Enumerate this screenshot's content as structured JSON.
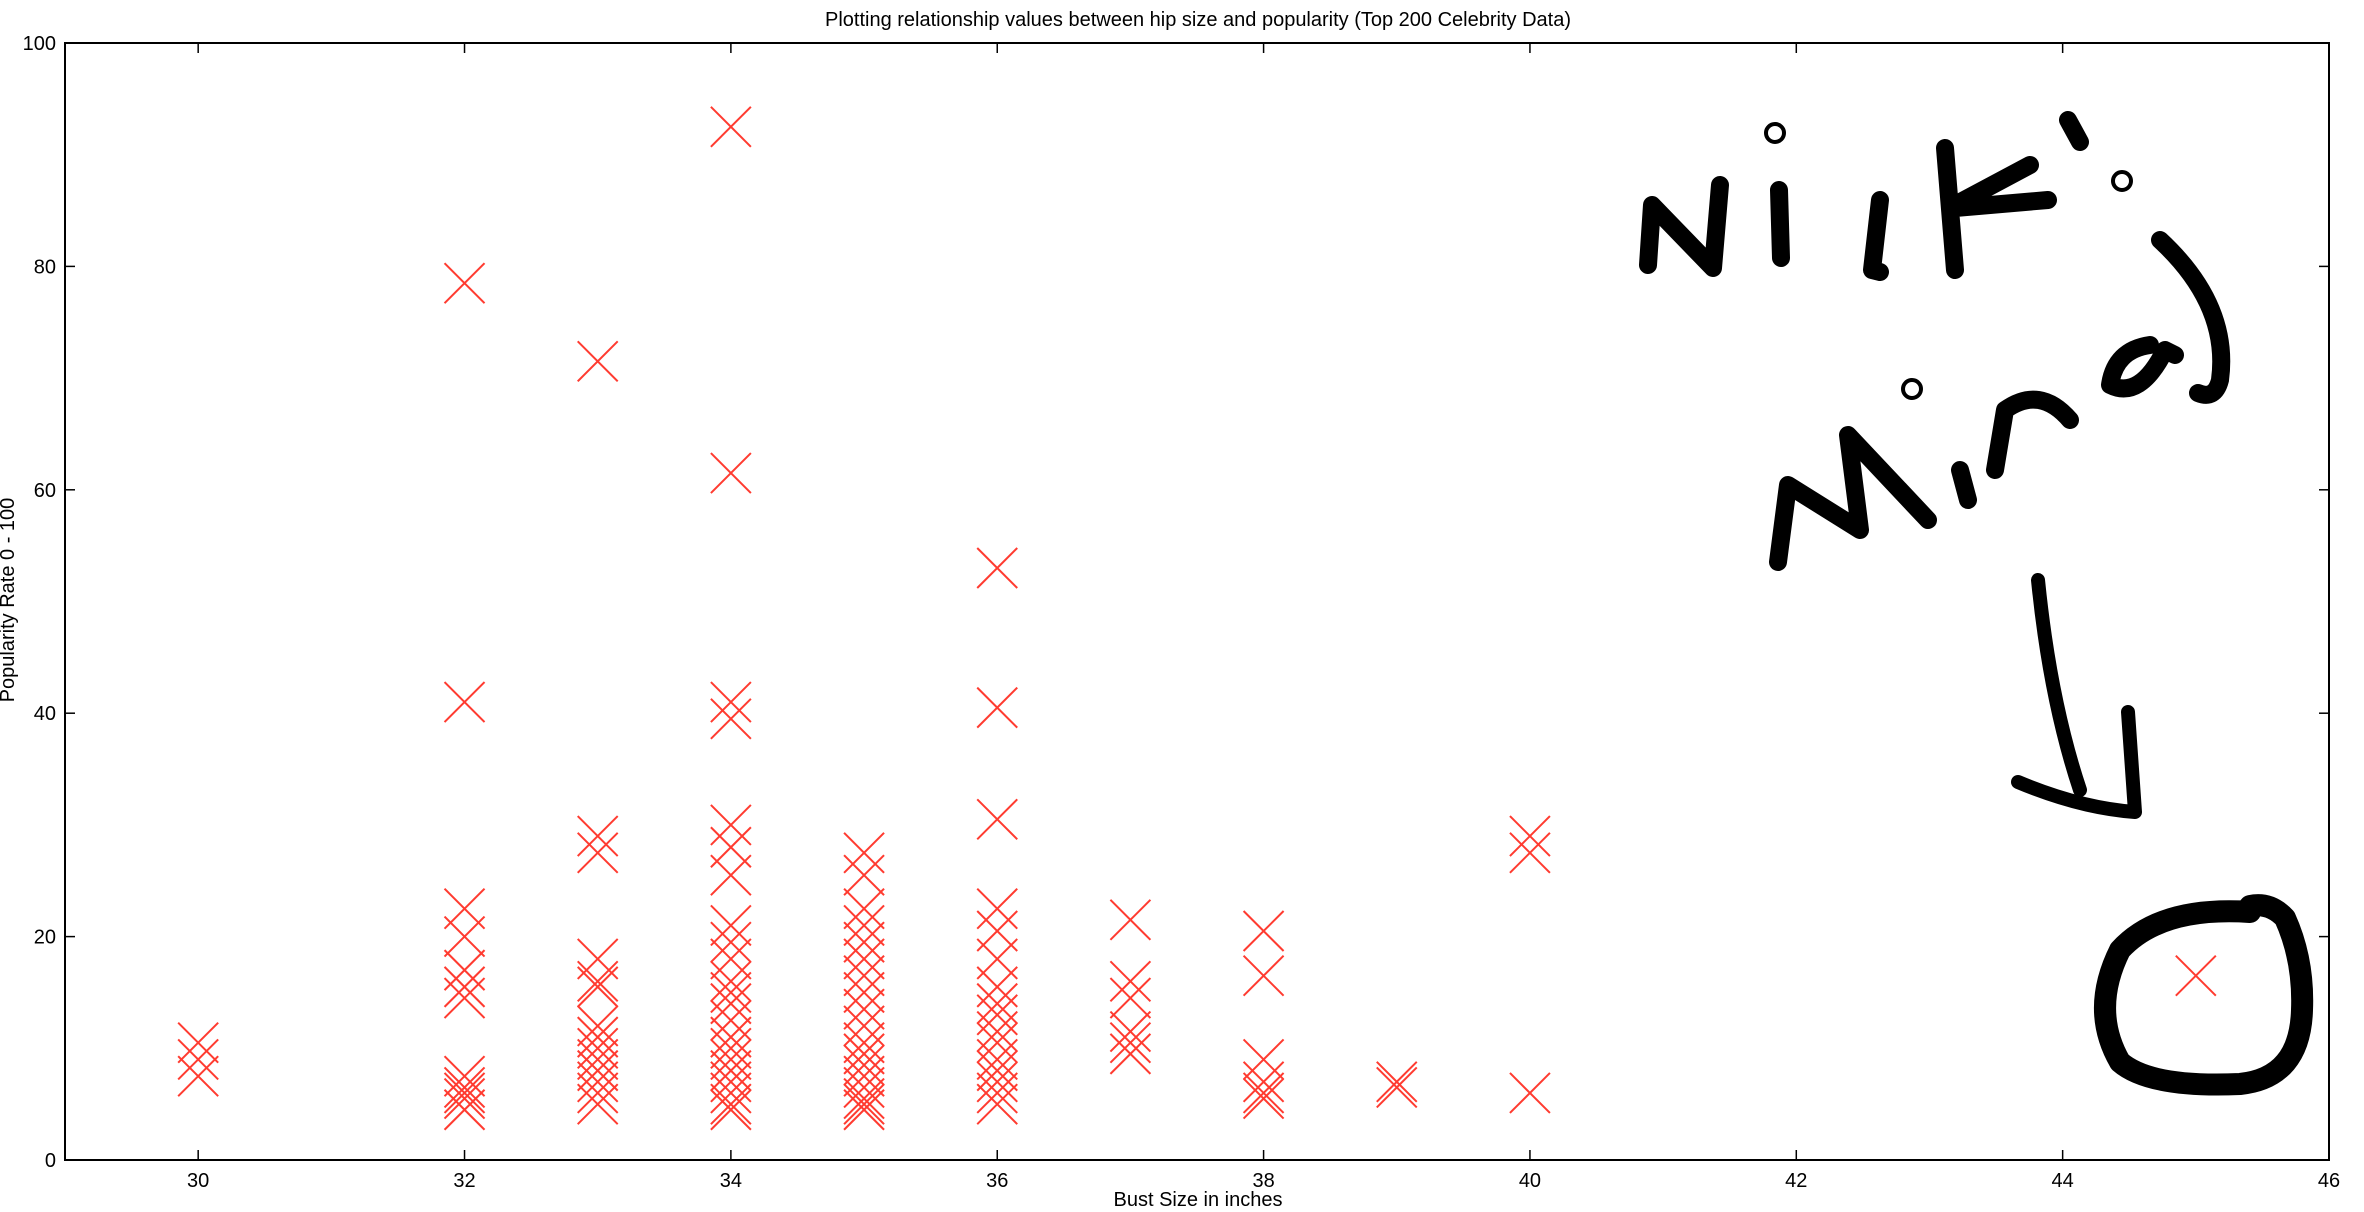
{
  "chart_data": {
    "type": "scatter",
    "title": "Plotting relationship values between hip size and popularity (Top 200 Celebrity Data)",
    "xlabel": "Bust Size in inches",
    "ylabel": "Popularity Rate 0 - 100",
    "xlim": [
      29,
      46
    ],
    "ylim": [
      0,
      100
    ],
    "xticks": [
      30,
      32,
      34,
      36,
      38,
      40,
      42,
      44,
      46
    ],
    "yticks": [
      0,
      20,
      40,
      60,
      80,
      100
    ],
    "grid": false,
    "marker": "x",
    "marker_color": "#ff3b30",
    "points": [
      [
        30,
        10.5
      ],
      [
        30,
        9
      ],
      [
        30,
        7.5
      ],
      [
        32,
        78.5
      ],
      [
        32,
        41
      ],
      [
        32,
        22.5
      ],
      [
        32,
        20
      ],
      [
        32,
        17
      ],
      [
        32,
        15.5
      ],
      [
        32,
        14.5
      ],
      [
        32,
        7.5
      ],
      [
        32,
        6.5
      ],
      [
        32,
        6
      ],
      [
        32,
        5.5
      ],
      [
        32,
        4.5
      ],
      [
        33,
        71.5
      ],
      [
        33,
        29
      ],
      [
        33,
        27.5
      ],
      [
        33,
        18
      ],
      [
        33,
        16
      ],
      [
        33,
        15.5
      ],
      [
        33,
        12
      ],
      [
        33,
        11
      ],
      [
        33,
        10
      ],
      [
        33,
        9
      ],
      [
        33,
        8
      ],
      [
        33,
        7
      ],
      [
        33,
        6
      ],
      [
        33,
        5
      ],
      [
        34,
        92.5
      ],
      [
        34,
        61.5
      ],
      [
        34,
        41
      ],
      [
        34,
        39.5
      ],
      [
        34,
        30
      ],
      [
        34,
        28
      ],
      [
        34,
        25.5
      ],
      [
        34,
        21
      ],
      [
        34,
        19.5
      ],
      [
        34,
        18
      ],
      [
        34,
        16
      ],
      [
        34,
        15
      ],
      [
        34,
        14
      ],
      [
        34,
        12.5
      ],
      [
        34,
        11
      ],
      [
        34,
        10
      ],
      [
        34,
        9
      ],
      [
        34,
        8
      ],
      [
        34,
        7
      ],
      [
        34,
        6
      ],
      [
        34,
        5
      ],
      [
        34,
        4.5
      ],
      [
        35,
        27.5
      ],
      [
        35,
        25.5
      ],
      [
        35,
        22.5
      ],
      [
        35,
        21
      ],
      [
        35,
        19.5
      ],
      [
        35,
        18
      ],
      [
        35,
        16.5
      ],
      [
        35,
        15
      ],
      [
        35,
        13.5
      ],
      [
        35,
        12
      ],
      [
        35,
        10.5
      ],
      [
        35,
        9.5
      ],
      [
        35,
        8.5
      ],
      [
        35,
        7.5
      ],
      [
        35,
        6.5
      ],
      [
        35,
        5.5
      ],
      [
        35,
        5
      ],
      [
        35,
        4.5
      ],
      [
        36,
        53
      ],
      [
        36,
        40.5
      ],
      [
        36,
        30.5
      ],
      [
        36,
        22.5
      ],
      [
        36,
        20.5
      ],
      [
        36,
        18
      ],
      [
        36,
        15.5
      ],
      [
        36,
        14
      ],
      [
        36,
        13
      ],
      [
        36,
        11.5
      ],
      [
        36,
        10.5
      ],
      [
        36,
        9
      ],
      [
        36,
        8
      ],
      [
        36,
        7
      ],
      [
        36,
        6
      ],
      [
        36,
        5
      ],
      [
        37,
        21.5
      ],
      [
        37,
        16
      ],
      [
        37,
        14.5
      ],
      [
        37,
        11.5
      ],
      [
        37,
        10.5
      ],
      [
        37,
        9.5
      ],
      [
        38,
        20.5
      ],
      [
        38,
        16.5
      ],
      [
        38,
        9
      ],
      [
        38,
        7
      ],
      [
        38,
        6
      ],
      [
        38,
        5.5
      ],
      [
        39,
        7
      ],
      [
        39,
        6.5
      ],
      [
        40,
        29
      ],
      [
        40,
        27.5
      ],
      [
        40,
        6
      ],
      [
        45,
        16.5
      ]
    ]
  },
  "annotation": {
    "line1": "Nicki",
    "line2": "Minaj"
  }
}
